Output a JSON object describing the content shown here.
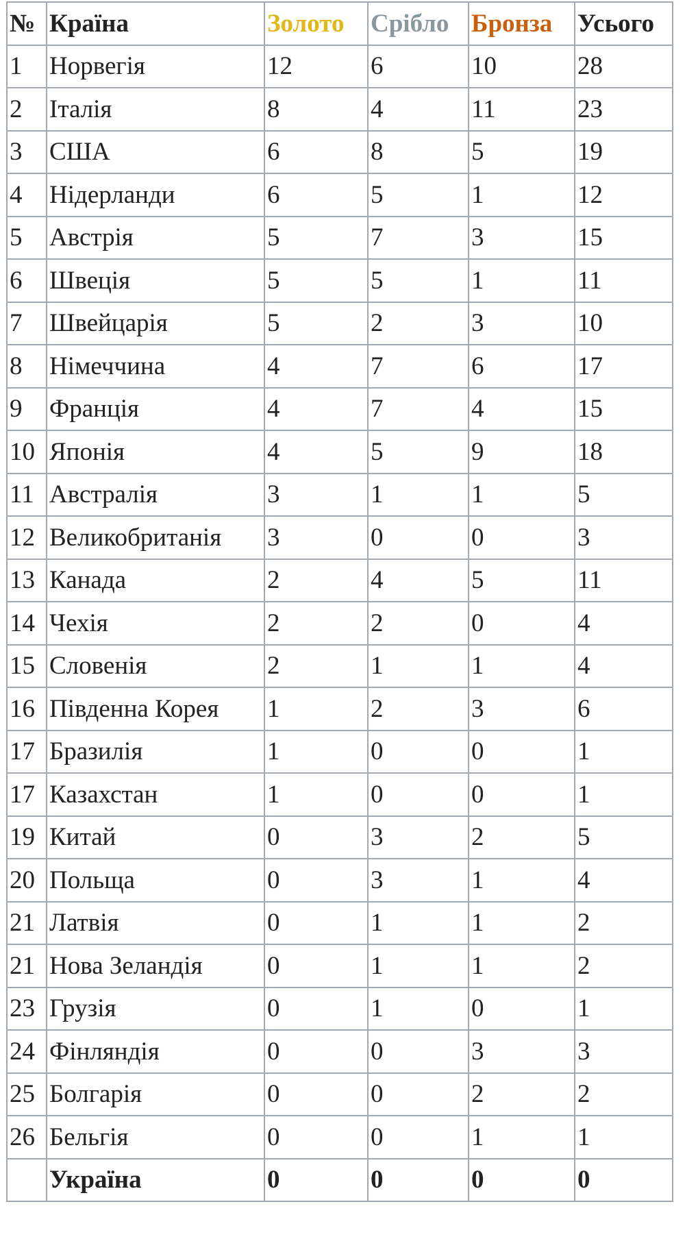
{
  "table": {
    "header": [
      "№",
      "Країна",
      "Золото",
      "Срібло",
      "Бронза",
      "Усього"
    ],
    "rows": [
      [
        1,
        "Норвегія",
        12,
        6,
        10,
        28
      ],
      [
        2,
        "Італія",
        8,
        4,
        11,
        23
      ],
      [
        3,
        "США",
        6,
        8,
        5,
        19
      ],
      [
        4,
        "Нідерланди",
        6,
        5,
        1,
        12
      ],
      [
        5,
        "Австрія",
        5,
        7,
        3,
        15
      ],
      [
        6,
        "Швеція",
        5,
        5,
        1,
        11
      ],
      [
        7,
        "Швейцарія",
        5,
        2,
        3,
        10
      ],
      [
        8,
        "Німеччина",
        4,
        7,
        6,
        17
      ],
      [
        9,
        "Франція",
        4,
        7,
        4,
        15
      ],
      [
        10,
        "Японія",
        4,
        5,
        9,
        18
      ],
      [
        11,
        "Австралія",
        3,
        1,
        1,
        5
      ],
      [
        12,
        "Великобританія",
        3,
        0,
        0,
        3
      ],
      [
        13,
        "Канада",
        2,
        4,
        5,
        11
      ],
      [
        14,
        "Чехія",
        2,
        2,
        0,
        4
      ],
      [
        15,
        "Словенія",
        2,
        1,
        1,
        4
      ],
      [
        16,
        "Південна Корея",
        1,
        2,
        3,
        6
      ],
      [
        17,
        "Бразилія",
        1,
        0,
        0,
        1
      ],
      [
        17,
        "Казахстан",
        1,
        0,
        0,
        1
      ],
      [
        19,
        "Китай",
        0,
        3,
        2,
        5
      ],
      [
        20,
        "Польща",
        0,
        3,
        1,
        4
      ],
      [
        21,
        "Латвія",
        0,
        1,
        1,
        2
      ],
      [
        21,
        "Нова Зеландія",
        0,
        1,
        1,
        2
      ],
      [
        23,
        "Грузія",
        0,
        1,
        0,
        1
      ],
      [
        24,
        "Фінляндія",
        0,
        0,
        3,
        3
      ],
      [
        25,
        "Болгарія",
        0,
        0,
        2,
        2
      ],
      [
        26,
        "Бельгія",
        0,
        0,
        1,
        1
      ]
    ],
    "footer": [
      "Україна",
      0,
      0,
      0,
      0
    ]
  }
}
